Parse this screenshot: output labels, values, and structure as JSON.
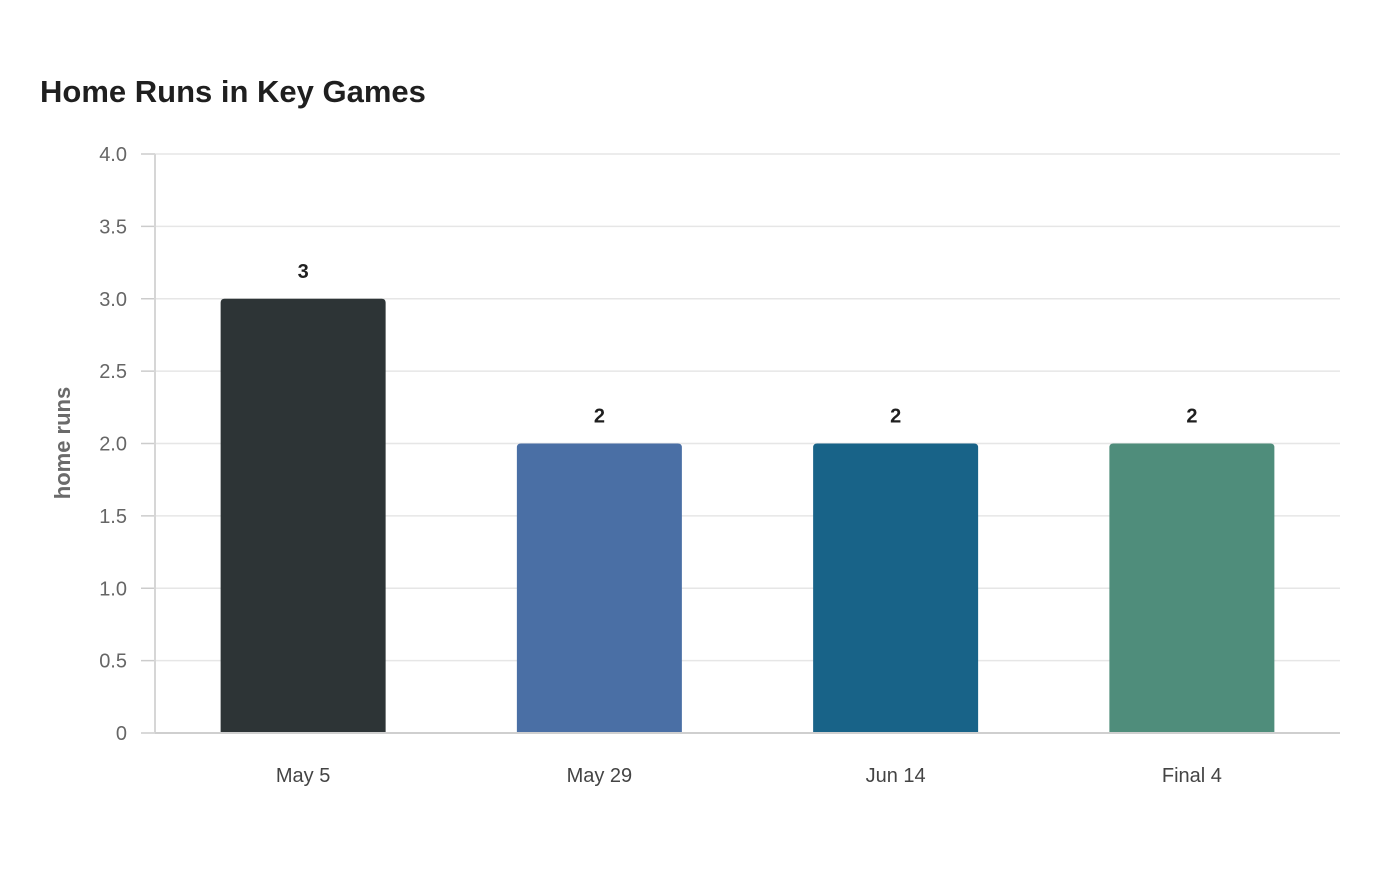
{
  "chart_data": {
    "type": "bar",
    "title": "Home Runs in Key Games",
    "xlabel": "",
    "ylabel": "home runs",
    "categories": [
      "May 5",
      "May 29",
      "Jun 14",
      "Final 4"
    ],
    "values": [
      3,
      2,
      2,
      2
    ],
    "data_labels": [
      "3",
      "2",
      "2",
      "2"
    ],
    "colors": [
      "#2d3436",
      "#4a6fa5",
      "#186388",
      "#4f8d7b"
    ],
    "ylim": [
      0,
      4
    ],
    "yticks": [
      0,
      0.5,
      1,
      1.5,
      2,
      2.5,
      3,
      3.5,
      4
    ],
    "ytick_labels": [
      "0",
      "0.5",
      "1.0",
      "1.5",
      "2.0",
      "2.5",
      "3.0",
      "3.5",
      "4.0"
    ],
    "grid": true,
    "legend": "none"
  }
}
